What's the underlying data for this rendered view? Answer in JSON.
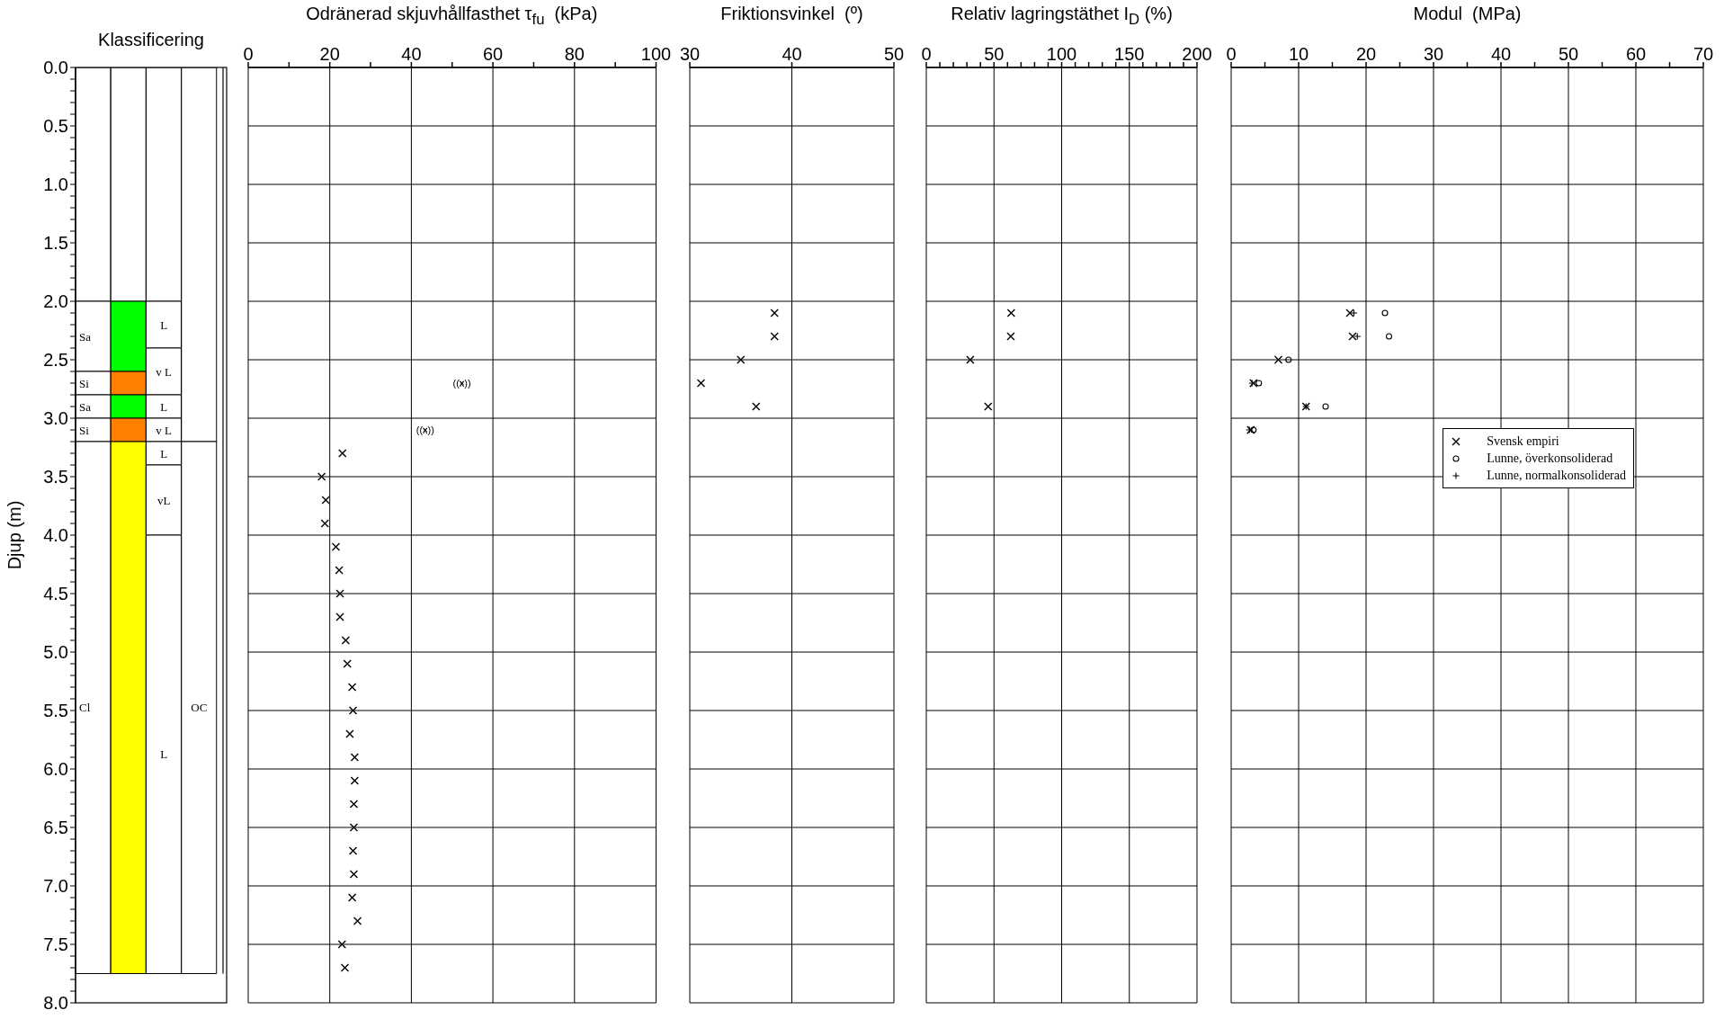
{
  "chart_data": [
    {
      "type": "bar",
      "title": "Klassificering",
      "ylabel": "Djup  (m)",
      "categories": [
        null,
        null,
        null,
        null
      ],
      "stacked": true,
      "series": [
        {
          "color": "#ffffff",
          "values": [
            2.0,
            2.0,
            2.0,
            3.2
          ]
        },
        {
          "name": "Sa",
          "color": "#00ff00",
          "colors": [
            "#ffffff",
            "#00ff00",
            "#ffffff",
            "#ffffff"
          ],
          "values": [
            0.6,
            0.6,
            null,
            null
          ]
        },
        {
          "name": "Si",
          "color": "#ff8000",
          "colors": [
            "#ffffff",
            "#ff8000",
            "#ffffff",
            "#ffffff"
          ],
          "values": [
            0.2,
            0.2,
            null,
            null
          ]
        },
        {
          "name": "Sa",
          "color": "#00ff00",
          "colors": [
            "#ffffff",
            "#00ff00",
            "#ffffff",
            "#ffffff"
          ],
          "values": [
            0.2,
            0.2,
            null,
            null
          ]
        },
        {
          "name": "Si",
          "color": "#ff8000",
          "colors": [
            "#ffffff",
            "#ff8000",
            "#ffffff",
            "#ffffff"
          ],
          "values": [
            0.2,
            0.2,
            null,
            null
          ]
        },
        {
          "name": "Cl",
          "color": "#ffff00",
          "colors": [
            "#ffffff",
            "#ffff00",
            "#ffffff",
            "#ffffff"
          ],
          "values": [
            4.55,
            4.55,
            null,
            null
          ]
        },
        {
          "name": "L",
          "color": "#ffffff",
          "values": [
            null,
            null,
            0.4,
            null
          ]
        },
        {
          "name": "v L",
          "color": "#ffffff",
          "values": [
            null,
            null,
            0.4,
            null
          ]
        },
        {
          "name": "L",
          "color": "#ffffff",
          "values": [
            null,
            null,
            0.2,
            null
          ]
        },
        {
          "name": "v L",
          "color": "#ffffff",
          "values": [
            null,
            null,
            0.2,
            null
          ]
        },
        {
          "name": "L",
          "color": "#ffffff",
          "values": [
            null,
            null,
            0.2,
            null
          ]
        },
        {
          "name": "vL",
          "color": "#ffffff",
          "values": [
            null,
            null,
            0.6,
            null
          ]
        },
        {
          "name": "L",
          "color": "#ffffff",
          "values": [
            null,
            null,
            3.75,
            null
          ]
        },
        {
          "name": "OC",
          "color": "#ffffff",
          "values": [
            null,
            null,
            null,
            4.55
          ]
        }
      ],
      "ylim": [
        8,
        0
      ],
      "yticks": [
        {
          "value": 0,
          "label": "0.0"
        },
        {
          "value": 0.1,
          "label": null
        },
        {
          "value": 0.2,
          "label": null
        },
        {
          "value": 0.3,
          "label": null
        },
        {
          "value": 0.4,
          "label": null
        },
        {
          "value": 0.5,
          "label": "0.5"
        },
        {
          "value": 0.6,
          "label": null
        },
        {
          "value": 0.7,
          "label": null
        },
        {
          "value": 0.8,
          "label": null
        },
        {
          "value": 0.9,
          "label": null
        },
        {
          "value": 1,
          "label": "1.0"
        },
        {
          "value": 1.1,
          "label": null
        },
        {
          "value": 1.2,
          "label": null
        },
        {
          "value": 1.3,
          "label": null
        },
        {
          "value": 1.4,
          "label": null
        },
        {
          "value": 1.5,
          "label": "1.5"
        },
        {
          "value": 1.6,
          "label": null
        },
        {
          "value": 1.7,
          "label": null
        },
        {
          "value": 1.8,
          "label": null
        },
        {
          "value": 1.9,
          "label": null
        },
        {
          "value": 2,
          "label": "2.0"
        },
        {
          "value": 2.1,
          "label": null
        },
        {
          "value": 2.2,
          "label": null
        },
        {
          "value": 2.3,
          "label": null
        },
        {
          "value": 2.4,
          "label": null
        },
        {
          "value": 2.5,
          "label": "2.5"
        },
        {
          "value": 2.6,
          "label": null
        },
        {
          "value": 2.7,
          "label": null
        },
        {
          "value": 2.8,
          "label": null
        },
        {
          "value": 2.9,
          "label": null
        },
        {
          "value": 3,
          "label": "3.0"
        },
        {
          "value": 3.1,
          "label": null
        },
        {
          "value": 3.2,
          "label": null
        },
        {
          "value": 3.3,
          "label": null
        },
        {
          "value": 3.4,
          "label": null
        },
        {
          "value": 3.5,
          "label": "3.5"
        },
        {
          "value": 3.6,
          "label": null
        },
        {
          "value": 3.7,
          "label": null
        },
        {
          "value": 3.8,
          "label": null
        },
        {
          "value": 3.9,
          "label": null
        },
        {
          "value": 4,
          "label": "4.0"
        },
        {
          "value": 4.1,
          "label": null
        },
        {
          "value": 4.2,
          "label": null
        },
        {
          "value": 4.3,
          "label": null
        },
        {
          "value": 4.4,
          "label": null
        },
        {
          "value": 4.5,
          "label": "4.5"
        },
        {
          "value": 4.6,
          "label": null
        },
        {
          "value": 4.7,
          "label": null
        },
        {
          "value": 4.8,
          "label": null
        },
        {
          "value": 4.9,
          "label": null
        },
        {
          "value": 5,
          "label": "5.0"
        },
        {
          "value": 5.1,
          "label": null
        },
        {
          "value": 5.2,
          "label": null
        },
        {
          "value": 5.3,
          "label": null
        },
        {
          "value": 5.4,
          "label": null
        },
        {
          "value": 5.5,
          "label": "5.5"
        },
        {
          "value": 5.6,
          "label": null
        },
        {
          "value": 5.7,
          "label": null
        },
        {
          "value": 5.8,
          "label": null
        },
        {
          "value": 5.9,
          "label": null
        },
        {
          "value": 6,
          "label": "6.0"
        },
        {
          "value": 6.1,
          "label": null
        },
        {
          "value": 6.2,
          "label": null
        },
        {
          "value": 6.3,
          "label": null
        },
        {
          "value": 6.4,
          "label": null
        },
        {
          "value": 6.5,
          "label": "6.5"
        },
        {
          "value": 6.6,
          "label": null
        },
        {
          "value": 6.7,
          "label": null
        },
        {
          "value": 6.8,
          "label": null
        },
        {
          "value": 6.9,
          "label": null
        },
        {
          "value": 7,
          "label": "7.0"
        },
        {
          "value": 7.1,
          "label": null
        },
        {
          "value": 7.2,
          "label": null
        },
        {
          "value": 7.3,
          "label": null
        },
        {
          "value": 7.4,
          "label": null
        },
        {
          "value": 7.5,
          "label": "7.5"
        },
        {
          "value": 7.6,
          "label": null
        },
        {
          "value": 7.7,
          "label": null
        },
        {
          "value": 7.8,
          "label": null
        },
        {
          "value": 7.9,
          "label": null
        },
        {
          "value": 8,
          "label": "8.0"
        }
      ]
    },
    {
      "type": "scatter",
      "title": "Odränerad skjuvhållfasthet τ$_{fu}$  (kPa)",
      "marker": "x",
      "grid": true,
      "tick_labels": "x",
      "xlim": [
        0,
        100
      ],
      "xticks": [
        0,
        {
          "value": 10,
          "label": null
        },
        20,
        {
          "value": 30,
          "label": null
        },
        40,
        {
          "value": 50,
          "label": null
        },
        60,
        {
          "value": 70,
          "label": null
        },
        80,
        {
          "value": 90,
          "label": null
        },
        100
      ],
      "ylim": [
        8,
        0
      ],
      "yticks": [
        0,
        0.5,
        1,
        1.5,
        2,
        2.5,
        3,
        3.5,
        4,
        4.5,
        5,
        5.5,
        6,
        6.5,
        7,
        7.5,
        8
      ],
      "series": [
        {
          "color": "#000000",
          "x": [
            23.1,
            18.0,
            19.0,
            18.8,
            21.5,
            22.3,
            22.5,
            22.5,
            23.9,
            24.3,
            25.5,
            25.7,
            24.9,
            26.1,
            26.1,
            25.9,
            25.9,
            25.7,
            25.9,
            25.5,
            26.8,
            23.0,
            23.7
          ],
          "values": [
            3.3,
            3.5,
            3.7,
            3.9,
            4.1,
            4.3,
            4.5,
            4.7,
            4.9,
            5.1,
            5.3,
            5.5,
            5.7,
            5.9,
            6.1,
            6.3,
            6.5,
            6.7,
            6.9,
            7.1,
            7.3,
            7.5,
            7.7
          ]
        },
        {
          "color": "#000000",
          "x": [
            52.4,
            43.4
          ],
          "values": [
            2.7,
            3.1
          ],
          "value_labels": [
            "((x))",
            "((x))"
          ]
        }
      ]
    },
    {
      "type": "scatter",
      "title": "Friktionsvinkel  (º)",
      "marker": "x",
      "grid": true,
      "tick_labels": "x",
      "xlim": [
        30,
        50
      ],
      "xticks": [
        30,
        40,
        50
      ],
      "ylim": [
        8,
        0
      ],
      "yticks": [
        0,
        0.5,
        1,
        1.5,
        2,
        2.5,
        3,
        3.5,
        4,
        4.5,
        5,
        5.5,
        6,
        6.5,
        7,
        7.5,
        8
      ],
      "series": [
        {
          "color": "#000000",
          "x": [
            38.3,
            38.3,
            35.0,
            31.1,
            36.5
          ],
          "values": [
            2.1,
            2.3,
            2.5,
            2.7,
            2.9
          ]
        }
      ]
    },
    {
      "type": "scatter",
      "title": "Relativ lagringstäthet I$_{D}$ (%)",
      "marker": "x",
      "grid": true,
      "tick_labels": "x",
      "xlim": [
        0,
        200
      ],
      "xticks": [
        0,
        {
          "value": 10,
          "label": null
        },
        {
          "value": 20,
          "label": null
        },
        {
          "value": 30,
          "label": null
        },
        {
          "value": 40,
          "label": null
        },
        50,
        {
          "value": 60,
          "label": null
        },
        {
          "value": 70,
          "label": null
        },
        {
          "value": 80,
          "label": null
        },
        {
          "value": 90,
          "label": null
        },
        100,
        {
          "value": 110,
          "label": null
        },
        {
          "value": 120,
          "label": null
        },
        {
          "value": 130,
          "label": null
        },
        {
          "value": 140,
          "label": null
        },
        150,
        {
          "value": 160,
          "label": null
        },
        {
          "value": 170,
          "label": null
        },
        {
          "value": 180,
          "label": null
        },
        {
          "value": 190,
          "label": null
        },
        200
      ],
      "ylim": [
        8,
        0
      ],
      "yticks": [
        0,
        0.5,
        1,
        1.5,
        2,
        2.5,
        3,
        3.5,
        4,
        4.5,
        5,
        5.5,
        6,
        6.5,
        7,
        7.5,
        8
      ],
      "series": [
        {
          "color": "#000000",
          "x": [
            62.7,
            62.4,
            32.5,
            45.7
          ],
          "values": [
            2.1,
            2.3,
            2.5,
            2.9
          ]
        }
      ]
    },
    {
      "type": "scatter",
      "title": "Modul  (MPa)",
      "grid": true,
      "tick_labels": "x",
      "legend": "right",
      "xlim": [
        0,
        70
      ],
      "xticks": [
        0,
        {
          "value": 5,
          "label": null
        },
        10,
        {
          "value": 15,
          "label": null
        },
        20,
        {
          "value": 25,
          "label": null
        },
        30,
        {
          "value": 35,
          "label": null
        },
        40,
        {
          "value": 45,
          "label": null
        },
        50,
        {
          "value": 55,
          "label": null
        },
        60,
        {
          "value": 65,
          "label": null
        },
        70
      ],
      "ylim": [
        8,
        0
      ],
      "yticks": [
        0,
        0.5,
        1,
        1.5,
        2,
        2.5,
        3,
        3.5,
        4,
        4.5,
        5,
        5.5,
        6,
        6.5,
        7,
        7.5,
        8
      ],
      "series": [
        {
          "name": "Svensk empiri",
          "color": "#000000",
          "marker": "x",
          "x": [
            17.6,
            18.0,
            7.0,
            3.3,
            11.1,
            2.9
          ],
          "values": [
            2.1,
            2.3,
            2.5,
            2.7,
            2.9,
            3.1
          ]
        },
        {
          "name": "Lunne, överkonsoliderad",
          "color": "#000000",
          "marker": "circle",
          "x": [
            22.8,
            23.4,
            8.5,
            4.1,
            14.0,
            3.3
          ],
          "values": [
            2.1,
            2.3,
            2.5,
            2.7,
            2.9,
            3.1
          ]
        },
        {
          "name": "Lunne, normalkonsoliderad",
          "color": "#000000",
          "marker": "cross",
          "x": [
            18.2,
            18.7,
            3.1,
            11.1,
            2.7
          ],
          "values": [
            2.1,
            2.3,
            2.7,
            2.9,
            3.1
          ]
        }
      ]
    }
  ]
}
